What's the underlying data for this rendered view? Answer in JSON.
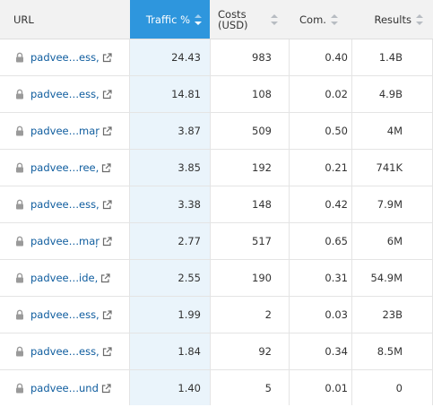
{
  "header": {
    "url": "URL",
    "traffic": "Traffic %",
    "costs_line1": "Costs",
    "costs_line2": "(USD)",
    "com": "Com.",
    "results": "Results"
  },
  "colors": {
    "accent": "#2e96dd",
    "highlight_column": "#eaf4fb",
    "link": "#0e5c9e"
  },
  "icons": {
    "lock": "lock-icon",
    "external": "external-link-icon",
    "sort": "sort-arrows-icon"
  },
  "rows": [
    {
      "url": "padvee…",
      "url_tail": "ess,",
      "traffic": "24.43",
      "costs": "983",
      "com": "0.40",
      "results": "1.4B"
    },
    {
      "url": "padvee…",
      "url_tail": "ess,",
      "traffic": "14.81",
      "costs": "108",
      "com": "0.02",
      "results": "4.9B"
    },
    {
      "url": "padvee…",
      "url_tail": "maŗ",
      "traffic": "3.87",
      "costs": "509",
      "com": "0.50",
      "results": "4M"
    },
    {
      "url": "padvee…",
      "url_tail": "ree,",
      "traffic": "3.85",
      "costs": "192",
      "com": "0.21",
      "results": "741K"
    },
    {
      "url": "padvee…",
      "url_tail": "ess,",
      "traffic": "3.38",
      "costs": "148",
      "com": "0.42",
      "results": "7.9M"
    },
    {
      "url": "padvee…",
      "url_tail": "maŗ",
      "traffic": "2.77",
      "costs": "517",
      "com": "0.65",
      "results": "6M"
    },
    {
      "url": "padvee…",
      "url_tail": "ide,",
      "traffic": "2.55",
      "costs": "190",
      "com": "0.31",
      "results": "54.9M"
    },
    {
      "url": "padvee…",
      "url_tail": "ess,",
      "traffic": "1.99",
      "costs": "2",
      "com": "0.03",
      "results": "23B"
    },
    {
      "url": "padvee…",
      "url_tail": "ess,",
      "traffic": "1.84",
      "costs": "92",
      "com": "0.34",
      "results": "8.5M"
    },
    {
      "url": "padvee…",
      "url_tail": "und",
      "traffic": "1.40",
      "costs": "5",
      "com": "0.01",
      "results": "0"
    }
  ]
}
